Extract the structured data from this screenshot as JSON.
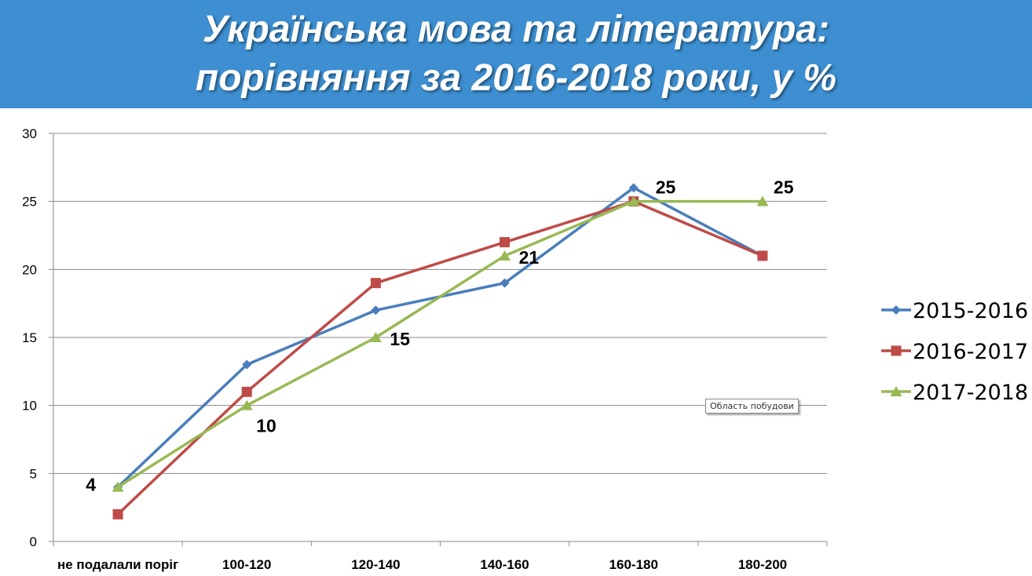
{
  "title": {
    "line1": "Українська мова та література:",
    "line2": "порівняння за 2016-2018 роки, у %"
  },
  "tooltip": "Область побудови",
  "colors": {
    "header_bg": "#3d8fd1",
    "series_2015_2016": "#4a7ebb",
    "series_2016_2017": "#be4b48",
    "series_2017_2018": "#98b954",
    "gridline": "#888888"
  },
  "chart_data": {
    "type": "line",
    "categories": [
      "не подалали поріг",
      "100-120",
      "120-140",
      "140-160",
      "160-180",
      "180-200"
    ],
    "ylim": [
      0,
      30
    ],
    "yticks": [
      0,
      5,
      10,
      15,
      20,
      25,
      30
    ],
    "grid": true,
    "legend_position": "right",
    "series": [
      {
        "name": "2015-2016",
        "marker": "diamond",
        "color": "#4a7ebb",
        "values": [
          4,
          13,
          17,
          19,
          26,
          21
        ]
      },
      {
        "name": "2016-2017",
        "marker": "square",
        "color": "#be4b48",
        "values": [
          2,
          11,
          19,
          22,
          25,
          21
        ]
      },
      {
        "name": "2017-2018",
        "marker": "triangle",
        "color": "#98b954",
        "values": [
          4,
          10,
          15,
          21,
          25,
          25
        ]
      }
    ],
    "data_labels": [
      {
        "series": "2017-2018",
        "category_index": 0,
        "text": "4"
      },
      {
        "series": "2017-2018",
        "category_index": 1,
        "text": "10"
      },
      {
        "series": "2017-2018",
        "category_index": 2,
        "text": "15"
      },
      {
        "series": "2017-2018",
        "category_index": 3,
        "text": "21"
      },
      {
        "series": "2017-2018",
        "category_index": 4,
        "text": "25"
      },
      {
        "series": "2017-2018",
        "category_index": 5,
        "text": "25"
      }
    ]
  }
}
